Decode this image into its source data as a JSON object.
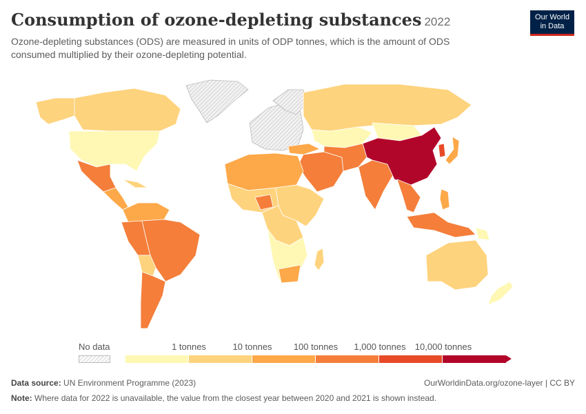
{
  "header": {
    "title": "Consumption of ozone-depleting substances",
    "year": "2022",
    "subtitle": "Ozone-depleting substances (ODS) are measured in units of ODP tonnes, which is the amount of ODS consumed multiplied by their ozone-depleting potential.",
    "logo_line1": "Our World",
    "logo_line2": "in Data"
  },
  "legend": {
    "no_data_label": "No data",
    "bins": [
      {
        "label": "1 tonnes",
        "color": "#fef8b4"
      },
      {
        "label": "10 tonnes",
        "color": "#fed37d"
      },
      {
        "label": "100 tonnes",
        "color": "#fda849"
      },
      {
        "label": "1,000 tonnes",
        "color": "#f47e3a"
      },
      {
        "label": "10,000 tonnes",
        "color": "#e84a27"
      }
    ],
    "top_color": "#b2052a"
  },
  "map_colors": {
    "nodata": "#e8e8e8",
    "border": "#ffffff"
  },
  "footer": {
    "source_label": "Data source:",
    "source_text": "UN Environment Programme (2023)",
    "url_text": "OurWorldinData.org/ozone-layer | CC BY",
    "note_label": "Note:",
    "note_text": "Where data for 2022 is unavailable, the value from the closest year between 2020 and 2021 is shown instead."
  }
}
